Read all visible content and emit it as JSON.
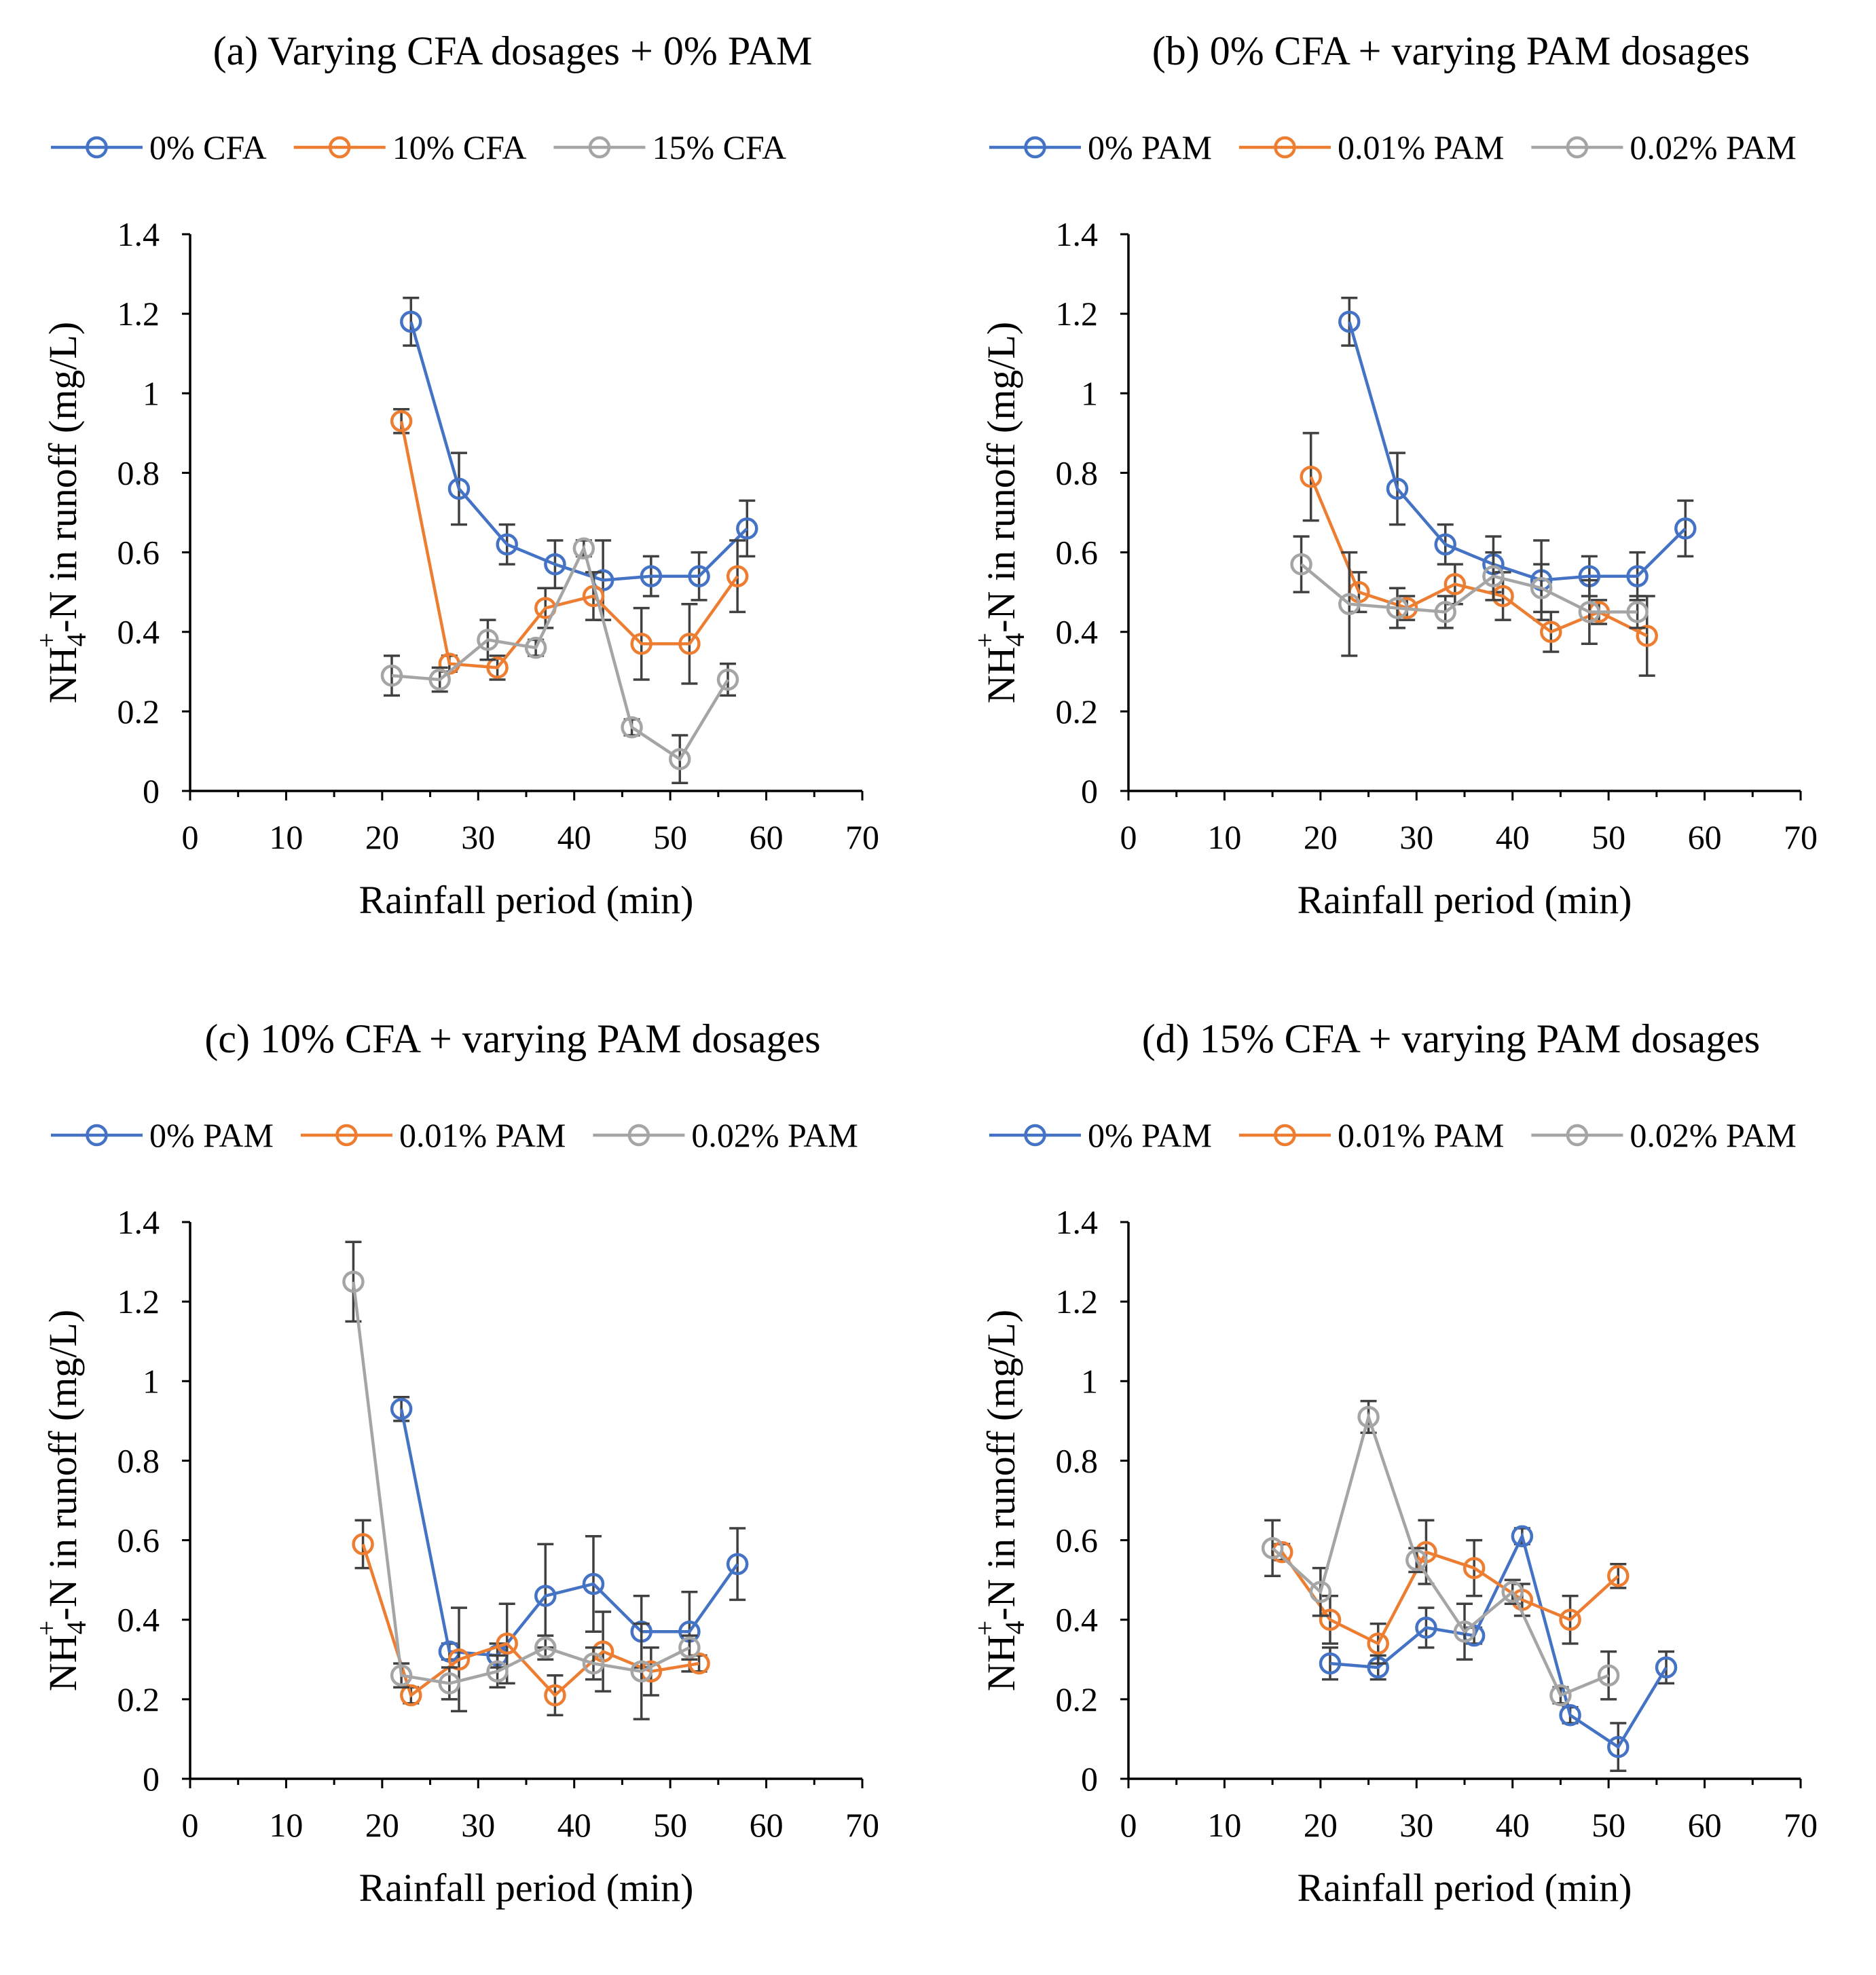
{
  "colors": {
    "blue": "#4472C4",
    "orange": "#ED7D31",
    "gray": "#A5A5A5",
    "error_bar": "#404040"
  },
  "chart_data": [
    {
      "type": "line",
      "title": "(a) Varying CFA dosages + 0% PAM",
      "xlabel": "Rainfall period (min)",
      "ylabel_main": "NH",
      "ylabel_sub": "4",
      "ylabel_sup": "+",
      "ylabel_rest": "-N in runoff (mg/L)",
      "xlim": [
        0,
        70
      ],
      "ylim": [
        0,
        1.4
      ],
      "xticks": [
        "0",
        "10",
        "20",
        "30",
        "40",
        "50",
        "60",
        "70"
      ],
      "yticks": [
        "0",
        "0.2",
        "0.4",
        "0.6",
        "0.8",
        "1",
        "1.2",
        "1.4"
      ],
      "legend_position": "top",
      "series": [
        {
          "name": "0% CFA",
          "color": "#4472C4",
          "x": [
            23,
            28,
            33,
            38,
            43,
            48,
            53,
            58
          ],
          "y": [
            1.18,
            0.76,
            0.62,
            0.57,
            0.53,
            0.54,
            0.54,
            0.66
          ],
          "err": [
            0.06,
            0.09,
            0.05,
            0.06,
            0.1,
            0.05,
            0.06,
            0.07
          ]
        },
        {
          "name": "10% CFA",
          "color": "#ED7D31",
          "x": [
            22,
            27,
            32,
            37,
            42,
            47,
            52,
            57
          ],
          "y": [
            0.93,
            0.32,
            0.31,
            0.46,
            0.49,
            0.37,
            0.37,
            0.54
          ],
          "err": [
            0.03,
            0.02,
            0.03,
            0.05,
            0.06,
            0.09,
            0.1,
            0.09
          ]
        },
        {
          "name": "15% CFA",
          "color": "#A5A5A5",
          "x": [
            21,
            26,
            31,
            36,
            41,
            46,
            51,
            56
          ],
          "y": [
            0.29,
            0.28,
            0.38,
            0.36,
            0.61,
            0.16,
            0.08,
            0.28
          ],
          "err": [
            0.05,
            0.03,
            0.05,
            0.02,
            0.02,
            0.02,
            0.06,
            0.04
          ]
        }
      ]
    },
    {
      "type": "line",
      "title": "(b) 0% CFA + varying PAM dosages",
      "xlabel": "Rainfall period (min)",
      "ylabel_main": "NH",
      "ylabel_sub": "4",
      "ylabel_sup": "+",
      "ylabel_rest": "-N in runoff (mg/L)",
      "xlim": [
        0,
        70
      ],
      "ylim": [
        0,
        1.4
      ],
      "xticks": [
        "0",
        "10",
        "20",
        "30",
        "40",
        "50",
        "60",
        "70"
      ],
      "yticks": [
        "0",
        "0.2",
        "0.4",
        "0.6",
        "0.8",
        "1",
        "1.2",
        "1.4"
      ],
      "legend_position": "top",
      "series": [
        {
          "name": "0% PAM",
          "color": "#4472C4",
          "x": [
            23,
            28,
            33,
            38,
            43,
            48,
            53,
            58
          ],
          "y": [
            1.18,
            0.76,
            0.62,
            0.57,
            0.53,
            0.54,
            0.54,
            0.66
          ],
          "err": [
            0.06,
            0.09,
            0.05,
            0.07,
            0.1,
            0.05,
            0.06,
            0.07
          ]
        },
        {
          "name": "0.01% PAM",
          "color": "#ED7D31",
          "x": [
            19,
            24,
            29,
            34,
            39,
            44,
            49,
            54
          ],
          "y": [
            0.79,
            0.5,
            0.46,
            0.52,
            0.49,
            0.4,
            0.45,
            0.39
          ],
          "err": [
            0.11,
            0.05,
            0.03,
            0.05,
            0.06,
            0.05,
            0.03,
            0.1
          ]
        },
        {
          "name": "0.02% PAM",
          "color": "#A5A5A5",
          "x": [
            18,
            23,
            28,
            33,
            38,
            43,
            48,
            53
          ],
          "y": [
            0.57,
            0.47,
            0.46,
            0.45,
            0.54,
            0.51,
            0.45,
            0.45
          ],
          "err": [
            0.07,
            0.13,
            0.05,
            0.04,
            0.06,
            0.06,
            0.08,
            0.04
          ]
        }
      ]
    },
    {
      "type": "line",
      "title": "(c) 10% CFA + varying PAM dosages",
      "xlabel": "Rainfall period (min)",
      "ylabel_main": "NH",
      "ylabel_sub": "4",
      "ylabel_sup": "+",
      "ylabel_rest": "-N in runoff (mg/L)",
      "xlim": [
        0,
        70
      ],
      "ylim": [
        0,
        1.4
      ],
      "xticks": [
        "0",
        "10",
        "20",
        "30",
        "40",
        "50",
        "60",
        "70"
      ],
      "yticks": [
        "0",
        "0.2",
        "0.4",
        "0.6",
        "0.8",
        "1",
        "1.2",
        "1.4"
      ],
      "legend_position": "top",
      "series": [
        {
          "name": "0% PAM",
          "color": "#4472C4",
          "x": [
            22,
            27,
            32,
            37,
            42,
            47,
            52,
            57
          ],
          "y": [
            0.93,
            0.32,
            0.31,
            0.46,
            0.49,
            0.37,
            0.37,
            0.54
          ],
          "err": [
            0.03,
            0.02,
            0.03,
            0.13,
            0.12,
            0.09,
            0.1,
            0.09
          ]
        },
        {
          "name": "0.01% PAM",
          "color": "#ED7D31",
          "x": [
            18,
            23,
            28,
            33,
            38,
            43,
            48,
            53
          ],
          "y": [
            0.59,
            0.21,
            0.3,
            0.34,
            0.21,
            0.32,
            0.27,
            0.29
          ],
          "err": [
            0.06,
            0.02,
            0.13,
            0.1,
            0.05,
            0.1,
            0.06,
            0.02
          ]
        },
        {
          "name": "0.02% PAM",
          "color": "#A5A5A5",
          "x": [
            17,
            22,
            27,
            32,
            37,
            42,
            47,
            52
          ],
          "y": [
            1.25,
            0.26,
            0.24,
            0.27,
            0.33,
            0.29,
            0.27,
            0.33
          ],
          "err": [
            0.1,
            0.03,
            0.04,
            0.04,
            0.03,
            0.04,
            0.12,
            0.03
          ]
        }
      ]
    },
    {
      "type": "line",
      "title": "(d) 15% CFA + varying PAM dosages",
      "xlabel": "Rainfall period (min)",
      "ylabel_main": "NH",
      "ylabel_sub": "4",
      "ylabel_sup": "+",
      "ylabel_rest": "-N in runoff (mg/L)",
      "xlim": [
        0,
        70
      ],
      "ylim": [
        0,
        1.4
      ],
      "xticks": [
        "0",
        "10",
        "20",
        "30",
        "40",
        "50",
        "60",
        "70"
      ],
      "yticks": [
        "0",
        "0.2",
        "0.4",
        "0.6",
        "0.8",
        "1",
        "1.2",
        "1.4"
      ],
      "legend_position": "top",
      "series": [
        {
          "name": "0% PAM",
          "color": "#4472C4",
          "x": [
            21,
            26,
            31,
            36,
            41,
            46,
            51,
            56
          ],
          "y": [
            0.29,
            0.28,
            0.38,
            0.36,
            0.61,
            0.16,
            0.08,
            0.28
          ],
          "err": [
            0.04,
            0.03,
            0.05,
            0.02,
            0.02,
            0.02,
            0.06,
            0.04
          ]
        },
        {
          "name": "0.01% PAM",
          "color": "#ED7D31",
          "x": [
            16,
            21,
            26,
            31,
            36,
            41,
            46,
            51
          ],
          "y": [
            0.57,
            0.4,
            0.34,
            0.57,
            0.53,
            0.45,
            0.4,
            0.51
          ],
          "err": [
            0.02,
            0.06,
            0.05,
            0.08,
            0.07,
            0.04,
            0.06,
            0.03
          ]
        },
        {
          "name": "0.02% PAM",
          "color": "#A5A5A5",
          "x": [
            15,
            20,
            25,
            30,
            35,
            40,
            45,
            50
          ],
          "y": [
            0.58,
            0.47,
            0.91,
            0.55,
            0.37,
            0.47,
            0.21,
            0.26
          ],
          "err": [
            0.07,
            0.06,
            0.04,
            0.03,
            0.07,
            0.03,
            0.02,
            0.06
          ]
        }
      ]
    }
  ]
}
